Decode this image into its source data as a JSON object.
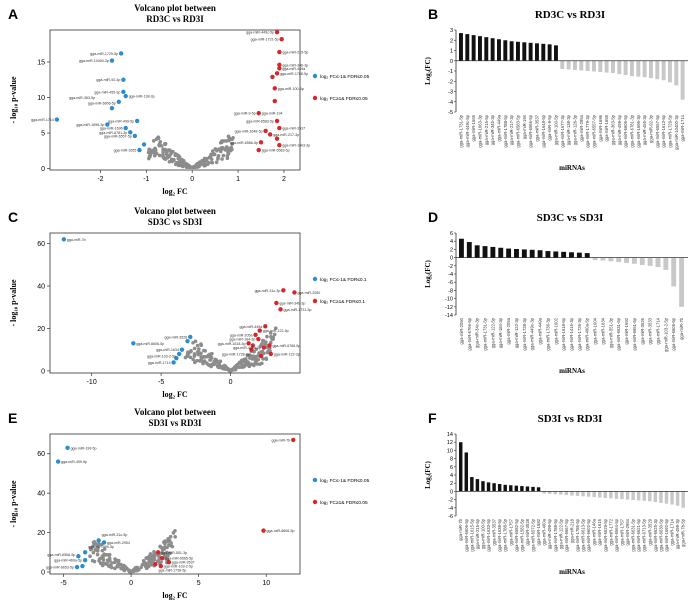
{
  "panels": {
    "A": "A",
    "B": "B",
    "C": "C",
    "D": "D",
    "E": "E",
    "F": "F"
  },
  "legend": {
    "down": "log₂ FC≤-1& FDR≤0.05",
    "up": "log₂ FC≥1& FDR≤0.05",
    "down_c": "log₂ FC≤-1& FDR≤0.1",
    "up_c": "log₂ FC≥1& FDR≤0.1"
  },
  "colors": {
    "up": "#d7262b",
    "down": "#2d8ccf",
    "ns": "#8c8c8c",
    "bar_up": "#111111",
    "bar_down": "#c8c8c8"
  },
  "chart_data": [
    {
      "id": "A",
      "type": "scatter",
      "title": "Volcano plot between\nRD3C vs RD3I",
      "xlabel": "log₂ FC",
      "ylabel": "- log₁₀ p-value",
      "xlim": [
        -3.1,
        2.35
      ],
      "ylim": [
        -0.2,
        19.5
      ],
      "xticks": [
        -2,
        -1,
        0,
        1,
        2
      ],
      "yticks": [
        0,
        5,
        10,
        15
      ],
      "points_up": [
        [
          1.85,
          19.2
        ],
        [
          1.95,
          18.2
        ],
        [
          1.9,
          16.4
        ],
        [
          1.9,
          14.6
        ],
        [
          1.9,
          14.1
        ],
        [
          1.85,
          13.4
        ],
        [
          1.75,
          12.9
        ],
        [
          1.8,
          11.3
        ],
        [
          1.8,
          9.5
        ],
        [
          1.45,
          7.8
        ],
        [
          1.85,
          6.7
        ],
        [
          1.9,
          5.7
        ],
        [
          1.6,
          5.3
        ],
        [
          1.7,
          4.8
        ],
        [
          1.85,
          4.2
        ],
        [
          1.5,
          3.7
        ],
        [
          1.9,
          3.3
        ],
        [
          1.45,
          2.6
        ]
      ],
      "points_down": [
        [
          -1.55,
          16.2
        ],
        [
          -1.75,
          15.2
        ],
        [
          -1.5,
          12.5
        ],
        [
          -1.5,
          10.8
        ],
        [
          -1.45,
          10.2
        ],
        [
          -1.6,
          9.4
        ],
        [
          -1.75,
          8.5
        ],
        [
          -2.95,
          6.9
        ],
        [
          -1.2,
          6.7
        ],
        [
          -1.85,
          6.2
        ],
        [
          -1.45,
          5.7
        ],
        [
          -1.35,
          5.1
        ],
        [
          -1.25,
          4.6
        ],
        [
          -1.15,
          2.6
        ],
        [
          -1.05,
          3.4
        ]
      ],
      "labels": [
        {
          "t": "gga-miR-1729-5p",
          "x": -1.55,
          "y": 16.2,
          "s": "L"
        },
        {
          "t": "gga-miR-10400-3p",
          "x": -1.75,
          "y": 15.2,
          "s": "L"
        },
        {
          "t": "gga-miR-92-3p",
          "x": -1.5,
          "y": 12.5,
          "s": "L"
        },
        {
          "t": "gga-miR-455-3p",
          "x": -1.5,
          "y": 10.8,
          "s": "L"
        },
        {
          "t": "gga-miR-363-5p",
          "x": -2.05,
          "y": 10.0,
          "s": "L"
        },
        {
          "t": "gga-miR-138-3p",
          "x": -1.45,
          "y": 10.2,
          "s": "R"
        },
        {
          "t": "gga-miR-6606-5p",
          "x": -1.6,
          "y": 9.2,
          "s": "L"
        },
        {
          "t": "gga-miR-1714",
          "x": -2.95,
          "y": 6.9,
          "s": "L"
        },
        {
          "t": "gga-miR-499-5p",
          "x": -1.2,
          "y": 6.7,
          "s": "L"
        },
        {
          "t": "gga-miR-1696-3p",
          "x": -1.85,
          "y": 6.2,
          "s": "L"
        },
        {
          "t": "gga-miR-1696",
          "x": -1.45,
          "y": 5.7,
          "s": "L"
        },
        {
          "t": "gga-miR-6781-3p",
          "x": -1.35,
          "y": 5.1,
          "s": "L"
        },
        {
          "t": "gga-miR-6557-5p",
          "x": -1.25,
          "y": 4.6,
          "s": "L"
        },
        {
          "t": "gga-miR-1655",
          "x": -1.15,
          "y": 2.6,
          "s": "L"
        },
        {
          "t": "gga-miR-449c-5p",
          "x": 1.85,
          "y": 19.2,
          "s": "L"
        },
        {
          "t": "gga-miR-1731-5p",
          "x": 1.95,
          "y": 18.2,
          "s": "L"
        },
        {
          "t": "gga-miR-215-5p",
          "x": 1.9,
          "y": 16.4,
          "s": "R"
        },
        {
          "t": "gga-miR-34b-3p",
          "x": 1.9,
          "y": 14.6,
          "s": "R"
        },
        {
          "t": "gga-miR-449a",
          "x": 1.9,
          "y": 14.1,
          "s": "R"
        },
        {
          "t": "gga-miR-1788-5p",
          "x": 1.85,
          "y": 13.4,
          "s": "R"
        },
        {
          "t": "gga-miR-100-5p",
          "x": 1.8,
          "y": 11.3,
          "s": "R"
        },
        {
          "t": "gga-miR-9-5p",
          "x": 1.45,
          "y": 7.8,
          "s": "L"
        },
        {
          "t": "gga-miR-194",
          "x": 1.45,
          "y": 7.8,
          "s": "R"
        },
        {
          "t": "gga-miR-6583-5p",
          "x": 1.85,
          "y": 6.7,
          "s": "L"
        },
        {
          "t": "gga-miR-3537",
          "x": 1.9,
          "y": 5.7,
          "s": "R"
        },
        {
          "t": "gga-miR-1648-5p",
          "x": 1.6,
          "y": 5.3,
          "s": "L"
        },
        {
          "t": "gga-miR-217-3p",
          "x": 1.7,
          "y": 4.8,
          "s": "R"
        },
        {
          "t": "gga-miR-6566-5p",
          "x": 1.5,
          "y": 3.7,
          "s": "L"
        },
        {
          "t": "gga-miR-1663-3p",
          "x": 1.9,
          "y": 3.3,
          "s": "R"
        },
        {
          "t": "gga-miR-6583-5p",
          "x": 1.45,
          "y": 2.6,
          "s": "R"
        }
      ]
    },
    {
      "id": "B",
      "type": "bar",
      "title": "RD3C vs RD3I",
      "xlabel": "miRNAs",
      "ylabel": "Log₂(FC)",
      "ylim": [
        -5,
        3
      ],
      "yticks": [
        3,
        2,
        1,
        0,
        -1,
        -2,
        -3,
        -4,
        -5
      ],
      "categories": [
        "gga-miR-1731-5p",
        "gga-miR-449c-5p",
        "gga-miR-1665",
        "gga-miR-1663-3p",
        "gga-miR-215-5p",
        "gga-miR-34b-3p",
        "gga-miR-449a",
        "gga-miR-1788-5p",
        "gga-miR-217-3p",
        "gga-miR-6583-5p",
        "gga-miR-194",
        "gga-miR-6566-5p",
        "gga-miR-3537",
        "gga-miR-1648-5p",
        "gga-miR-9-5p",
        "gga-miR-100-5p",
        "gga-miR-1677-3p",
        "gga-miR-138-3p",
        "gga-miR-126-3p",
        "gga-miR-2954",
        "gga-miR-1779-3p",
        "gga-miR-6557-5p",
        "gga-miR-1696",
        "gga-miR-1655",
        "gga-miR-363-5p",
        "gga-miR-499-5p",
        "gga-miR-6606-5p",
        "gga-miR-6781-3p",
        "gga-miR-1696-3p",
        "gga-miR-455-3p",
        "gga-miR-92-3p",
        "gga-miR-6557-5p",
        "gga-miR-1613-5p",
        "gga-miR-1729-5p",
        "gga-miR-10400-3p",
        "gga-miR-1714"
      ],
      "values": [
        2.7,
        2.6,
        2.5,
        2.4,
        2.3,
        2.2,
        2.1,
        2.0,
        1.9,
        1.85,
        1.8,
        1.75,
        1.7,
        1.65,
        1.6,
        1.5,
        -0.8,
        -0.85,
        -0.9,
        -0.95,
        -1.0,
        -1.05,
        -1.1,
        -1.15,
        -1.2,
        -1.3,
        -1.4,
        -1.5,
        -1.55,
        -1.6,
        -1.7,
        -1.8,
        -1.9,
        -2.1,
        -2.4,
        -3.8
      ]
    },
    {
      "id": "C",
      "type": "scatter",
      "title": "Volcano plot between\nSD3C vs SD3I",
      "xlabel": "log₂ FC",
      "ylabel": "- log₁₀ p-value",
      "xlim": [
        -13,
        5
      ],
      "ylim": [
        -1,
        65
      ],
      "xticks": [
        -10,
        -5,
        0
      ],
      "yticks": [
        0,
        20,
        40,
        60
      ],
      "points_up": [
        [
          3.8,
          38
        ],
        [
          4.6,
          37
        ],
        [
          3.3,
          32
        ],
        [
          3.6,
          29
        ],
        [
          2.5,
          21
        ],
        [
          2.1,
          19
        ],
        [
          1.8,
          17
        ],
        [
          2.0,
          15
        ],
        [
          1.3,
          13
        ],
        [
          1.6,
          12
        ],
        [
          2.4,
          11
        ],
        [
          2.9,
          8
        ],
        [
          2.2,
          7
        ],
        [
          2.8,
          12
        ],
        [
          1.5,
          10
        ]
      ],
      "points_down": [
        [
          -12,
          62
        ],
        [
          -7,
          13
        ],
        [
          -2.9,
          16
        ],
        [
          -3.1,
          14
        ],
        [
          -3.5,
          10
        ],
        [
          -3.7,
          8
        ],
        [
          -3.9,
          6
        ],
        [
          -4.1,
          4
        ]
      ],
      "labels": [
        {
          "t": "gga-miR-7b",
          "x": -12,
          "y": 62,
          "s": "R"
        },
        {
          "t": "gga-miR-6606-5p",
          "x": -7,
          "y": 13,
          "s": "R"
        },
        {
          "t": "gga-miR-3526",
          "x": -2.9,
          "y": 16,
          "s": "L"
        },
        {
          "t": "gga-miR-1634",
          "x": -3.5,
          "y": 10,
          "s": "L"
        },
        {
          "t": "gga-miR-103-2-5p",
          "x": -3.7,
          "y": 7,
          "s": "L"
        },
        {
          "t": "gga-miR-1714",
          "x": -4.1,
          "y": 4,
          "s": "L"
        },
        {
          "t": "gga-miR-31c-3p",
          "x": 3.8,
          "y": 38,
          "s": "L"
        },
        {
          "t": "gga-miR-2050",
          "x": 4.6,
          "y": 37,
          "s": "R"
        },
        {
          "t": "gga-miR-34b-3p",
          "x": 3.3,
          "y": 32,
          "s": "R"
        },
        {
          "t": "gga-miR-1731-5p",
          "x": 3.6,
          "y": 29,
          "s": "R"
        },
        {
          "t": "gga-miR-449a",
          "x": 2.5,
          "y": 21,
          "s": "L"
        },
        {
          "t": "gga-miR-122-5p",
          "x": 2.1,
          "y": 19,
          "s": "R"
        },
        {
          "t": "gga-miR-205a",
          "x": 1.8,
          "y": 17,
          "s": "L"
        },
        {
          "t": "gga-miR-184-3p",
          "x": 2.0,
          "y": 15,
          "s": "L"
        },
        {
          "t": "gga-miR-1618-5p",
          "x": 1.3,
          "y": 13,
          "s": "L"
        },
        {
          "t": "gga-miR-6766-5p",
          "x": 2.8,
          "y": 12,
          "s": "R"
        },
        {
          "t": "gga-miR-449c-3p",
          "x": 2.4,
          "y": 11,
          "s": "L"
        },
        {
          "t": "gga-miR-1728-3p",
          "x": 1.6,
          "y": 8,
          "s": "L"
        },
        {
          "t": "gga-miR-122-3p",
          "x": 2.9,
          "y": 8,
          "s": "R"
        }
      ]
    },
    {
      "id": "D",
      "type": "bar",
      "title": "SD3C vs SD3I",
      "xlabel": "miRNAs",
      "ylabel": "Log₂(FC)",
      "ylim": [
        -14,
        6
      ],
      "yticks": [
        6,
        4,
        2,
        0,
        -2,
        -4,
        -6,
        -8,
        -10,
        -12,
        -14
      ],
      "categories": [
        "gga-miR-2050",
        "gga-miR-6766-5p",
        "gga-miR-34c-3p",
        "gga-miR-1731-5p",
        "gga-miR-122-5p",
        "gga-miR-184-3p",
        "gga-miR-205a",
        "gga-miR-122-3p",
        "gga-miR-1728-3p",
        "gga-miR-449c-3p",
        "gga-miR-449a",
        "gga-miR-1736-3p",
        "gga-miR-1602",
        "gga-miR-1618-5p",
        "gga-miR-1416-3p",
        "gga-miR-1726-3p",
        "gga-miR-460a-5p",
        "gga-miR-1604",
        "gga-miR-1634",
        "gga-miR-551-3p",
        "gga-miR-6631-5p",
        "gga-miR-1692",
        "gga-miR-6651-5p",
        "gga-miR-3526",
        "gga-miR-3533",
        "gga-miR-1714",
        "gga-miR-103-2-5p",
        "gga-miR-6606-5p",
        "gga-miR-7b"
      ],
      "values": [
        4.6,
        3.8,
        3.0,
        2.8,
        2.6,
        2.4,
        2.2,
        2.1,
        2.0,
        1.9,
        1.8,
        1.6,
        1.5,
        1.4,
        1.3,
        1.2,
        1.1,
        -0.6,
        -0.7,
        -0.9,
        -1.1,
        -1.3,
        -1.5,
        -1.8,
        -2.0,
        -2.3,
        -3.0,
        -7.0,
        -12.0
      ]
    },
    {
      "id": "E",
      "type": "scatter",
      "title": "Volcano plot between\nSD3I vs RD3I",
      "xlabel": "log₂ FC",
      "ylabel": "- log₁₀ p-value",
      "xlim": [
        -6,
        12.5
      ],
      "ylim": [
        -1,
        70
      ],
      "xticks": [
        -5,
        0,
        5,
        10
      ],
      "yticks": [
        0,
        20,
        40,
        60
      ],
      "points_up": [
        [
          12,
          67
        ],
        [
          9.8,
          21
        ],
        [
          2.0,
          10
        ],
        [
          2.3,
          7
        ],
        [
          2.8,
          5
        ],
        [
          2.2,
          3
        ],
        [
          1.8,
          4
        ]
      ],
      "points_down": [
        [
          -4.7,
          63
        ],
        [
          -5.4,
          56
        ],
        [
          -2.4,
          16
        ],
        [
          -2.0,
          15
        ],
        [
          -3.4,
          10
        ],
        [
          -3.9,
          8
        ],
        [
          -3.4,
          6
        ],
        [
          -3.6,
          3
        ],
        [
          -4.0,
          2.5
        ]
      ],
      "labels": [
        {
          "t": "gga-miR-7b",
          "x": 12,
          "y": 67,
          "s": "L"
        },
        {
          "t": "gga-miR-6606-5p",
          "x": 9.8,
          "y": 21,
          "s": "R"
        },
        {
          "t": "gga-miR-199-5p",
          "x": -4.7,
          "y": 63,
          "s": "R"
        },
        {
          "t": "gga-miR-499-5p",
          "x": -5.4,
          "y": 56,
          "s": "R"
        },
        {
          "t": "gga-miR-31c-5p",
          "x": -2.4,
          "y": 19,
          "s": "R"
        },
        {
          "t": "gga-miR-2954",
          "x": -2.0,
          "y": 15,
          "s": "R"
        },
        {
          "t": "gga-miR-499-5p",
          "x": -3.4,
          "y": 13,
          "s": "R"
        },
        {
          "t": "gga-miR-6566-5p",
          "x": -3.9,
          "y": 9,
          "s": "L"
        },
        {
          "t": "gga-miR-460a-5p",
          "x": -3.4,
          "y": 6,
          "s": "L"
        },
        {
          "t": "gga-miR-6653-5p",
          "x": -4.0,
          "y": 2.5,
          "s": "L"
        },
        {
          "t": "gga-miR-551-3p",
          "x": 2.0,
          "y": 10,
          "s": "R"
        },
        {
          "t": "gga-miR-6565-5p",
          "x": 2.3,
          "y": 7,
          "s": "R"
        },
        {
          "t": "gga-miR-3537",
          "x": 2.8,
          "y": 5,
          "s": "R"
        },
        {
          "t": "gga-miR-103-2-5p",
          "x": 2.2,
          "y": 3,
          "s": "R"
        },
        {
          "t": "gga-miR-1736-5p",
          "x": 1.8,
          "y": 1,
          "s": "R"
        }
      ]
    },
    {
      "id": "F",
      "type": "bar",
      "title": "SD3I vs RD3I",
      "xlabel": "miRNAs",
      "ylabel": "Log₂(FC)",
      "ylim": [
        -6,
        14
      ],
      "yticks": [
        14,
        12,
        10,
        8,
        6,
        4,
        2,
        0,
        -2,
        -4,
        -6
      ],
      "categories": [
        "gga-miR-7b",
        "gga-miR-6606-5p",
        "gga-miR-1615-5p",
        "gga-miR-215-5p",
        "gga-miR-100-5p",
        "gga-miR-1633-5p",
        "gga-miR-3537",
        "gga-miR-1638-5p",
        "gga-miR-1788-5p",
        "gga-miR-1757",
        "gga-miR-6582-5p",
        "gga-miR-1582-5p",
        "gga-miR-3528",
        "gga-miR-6572-5p",
        "gga-miR-1582",
        "gga-miR-460a",
        "gga-miR-499-5p",
        "gga-miR-1788-5p",
        "gga-miR-122-5p",
        "gga-miR-6667-5p",
        "gga-miR-218",
        "gga-miR-1786-5p",
        "gga-miR-6613-5p",
        "gga-miR-6602-5p",
        "gga-miR-146a",
        "gga-miR-1616",
        "gga-miR-6629-5p",
        "gga-miR-1772",
        "gga-miR-6564-5p",
        "gga-miR-1757",
        "gga-miR-2954",
        "gga-miR-6631-5p",
        "gga-miR-6621-5p",
        "gga-miR-6713-5p",
        "gga-miR-3529",
        "gga-miR-6625-3p",
        "gga-miR-6630-5p",
        "gga-miR-1692-5p",
        "gga-miR-1714",
        "gga-miR-499-3p",
        "gga-miR-7b-5p"
      ],
      "values": [
        12.0,
        9.5,
        3.5,
        3.0,
        2.5,
        2.2,
        2.0,
        1.8,
        1.6,
        1.5,
        1.4,
        1.3,
        1.2,
        1.1,
        1.0,
        -0.5,
        -0.6,
        -0.7,
        -0.8,
        -0.9,
        -1.0,
        -1.1,
        -1.2,
        -1.3,
        -1.4,
        -1.5,
        -1.6,
        -1.7,
        -1.8,
        -1.9,
        -2.0,
        -2.1,
        -2.2,
        -2.3,
        -2.4,
        -2.6,
        -2.8,
        -3.0,
        -3.2,
        -3.5,
        -4.0
      ]
    }
  ]
}
